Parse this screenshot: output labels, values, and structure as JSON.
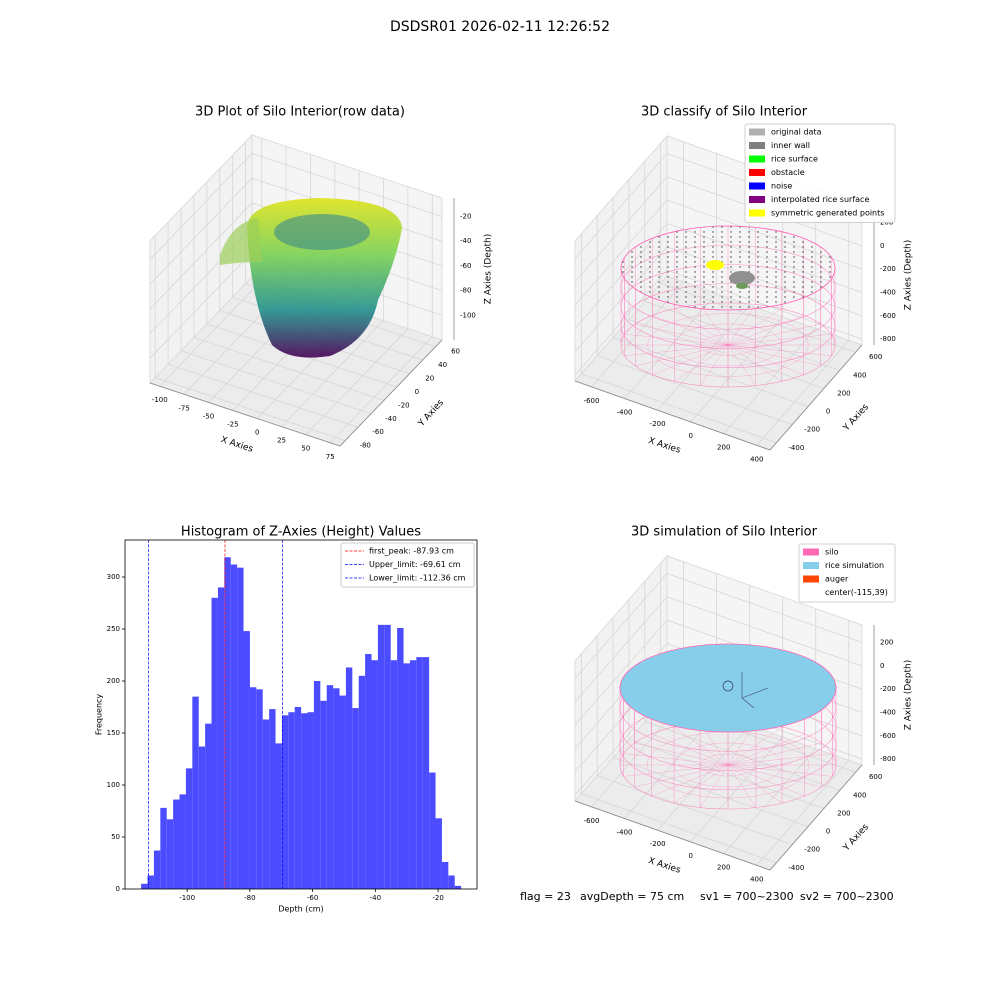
{
  "title": "DSDSR01 2026-02-11 12:26:52",
  "chart_data": [
    {
      "type": "scatter3d",
      "title": "3D Plot of Silo Interior(row data)",
      "xlabel": "X Axies",
      "ylabel": "Y Axies",
      "zlabel": "Z Axies (Depth)",
      "xlim": [
        -110,
        85
      ],
      "xticks": [
        -100,
        -75,
        -50,
        -25,
        0,
        25,
        50,
        75
      ],
      "ylim": [
        -88,
        70
      ],
      "yticks": [
        -80,
        -60,
        -40,
        -20,
        0,
        20,
        40,
        60
      ],
      "zlim": [
        -120,
        -5
      ],
      "zticks": [
        -100,
        -80,
        -60,
        -40,
        -20
      ]
    },
    {
      "type": "classify3d",
      "title": "3D classify of Silo Interior",
      "xlabel": "X Axies",
      "ylabel": "Y Axies",
      "zlabel": "Z Axies (Depth)",
      "xlim": [
        -700,
        480
      ],
      "xticks": [
        -600,
        -400,
        -200,
        0,
        200,
        400
      ],
      "ylim": [
        -480,
        680
      ],
      "yticks": [
        -400,
        -200,
        0,
        200,
        400,
        600
      ],
      "zlim": [
        -850,
        350
      ],
      "zticks": [
        -800,
        -600,
        -400,
        -200,
        0,
        200
      ],
      "legend": [
        {
          "name": "original data",
          "color": "#b0b0b0"
        },
        {
          "name": "inner wall",
          "color": "#808080"
        },
        {
          "name": "rice surface",
          "color": "#00ff00"
        },
        {
          "name": "obstacle",
          "color": "#ff0000"
        },
        {
          "name": "noise",
          "color": "#0000ff"
        },
        {
          "name": "interpolated rice surface",
          "color": "#800080"
        },
        {
          "name": "symmetric generated points",
          "color": "#ffff00"
        }
      ]
    },
    {
      "type": "histogram",
      "title": "Histogram of Z-Axies (Height) Values",
      "xlabel": "Depth (cm)",
      "ylabel": "Frequency",
      "color": "#4b4bff",
      "bins": [
        -114.66,
        -112.62,
        -110.58,
        -108.54,
        -106.5,
        -104.46,
        -102.42,
        -100.38,
        -98.34,
        -96.3,
        -94.26,
        -92.22,
        -90.18,
        -88.14,
        -86.1,
        -84.06,
        -82.02,
        -79.98,
        -77.94,
        -75.9,
        -73.86,
        -71.82,
        -69.78,
        -67.74,
        -65.7,
        -63.66,
        -61.62,
        -59.58,
        -57.54,
        -55.5,
        -53.46,
        -51.42,
        -49.38,
        -47.34,
        -45.3,
        -43.26,
        -41.22,
        -39.18,
        -37.14,
        -35.1,
        -33.06,
        -31.02,
        -28.98,
        -26.94,
        -24.9,
        -22.86,
        -20.82,
        -18.78,
        -16.74,
        -14.7,
        -12.66
      ],
      "values": [
        5,
        13,
        37,
        78,
        67,
        86,
        91,
        116,
        185,
        137,
        159,
        280,
        290,
        319,
        312,
        309,
        248,
        194,
        192,
        163,
        173,
        140,
        167,
        170,
        175,
        169,
        170,
        200,
        181,
        196,
        193,
        186,
        213,
        174,
        205,
        226,
        220,
        254,
        254,
        220,
        251,
        217,
        220,
        223,
        223,
        112,
        68,
        26,
        13,
        3
      ],
      "xlim": [
        -119.8,
        -7.6
      ],
      "xticks": [
        -100,
        -80,
        -60,
        -40,
        -20
      ],
      "ylim": [
        0,
        335.6
      ],
      "yticks": [
        0,
        50,
        100,
        150,
        200,
        250,
        300
      ],
      "vlines": [
        {
          "label": "first_peak: -87.93 cm",
          "value": -87.93,
          "color": "#ff0000"
        },
        {
          "label": "Upper_limit: -69.61 cm",
          "value": -69.61,
          "color": "#0000ff"
        },
        {
          "label": "Lower_limit: -112.36 cm",
          "value": -112.36,
          "color": "#0000ff"
        }
      ]
    },
    {
      "type": "simulation3d",
      "title": "3D simulation of Silo Interior",
      "xlabel": "X Axies",
      "ylabel": "Y Axies",
      "zlabel": "Z Axies (Depth)",
      "xlim": [
        -700,
        480
      ],
      "xticks": [
        -600,
        -400,
        -200,
        0,
        200,
        400
      ],
      "ylim": [
        -480,
        680
      ],
      "yticks": [
        -400,
        -200,
        0,
        200,
        400,
        600
      ],
      "zlim": [
        -850,
        350
      ],
      "zticks": [
        -800,
        -600,
        -400,
        -200,
        0,
        200
      ],
      "legend": [
        {
          "name": "silo",
          "color": "#ff69b4"
        },
        {
          "name": "rice simulation",
          "color": "#87ceeb"
        },
        {
          "name": "auger",
          "color": "#ff4500"
        },
        {
          "name": "center(-115,39)"
        }
      ]
    }
  ],
  "status": [
    "flag = 23",
    "avgDepth = 75 cm",
    "sv1 = 700~2300",
    "sv2 = 700~2300"
  ]
}
